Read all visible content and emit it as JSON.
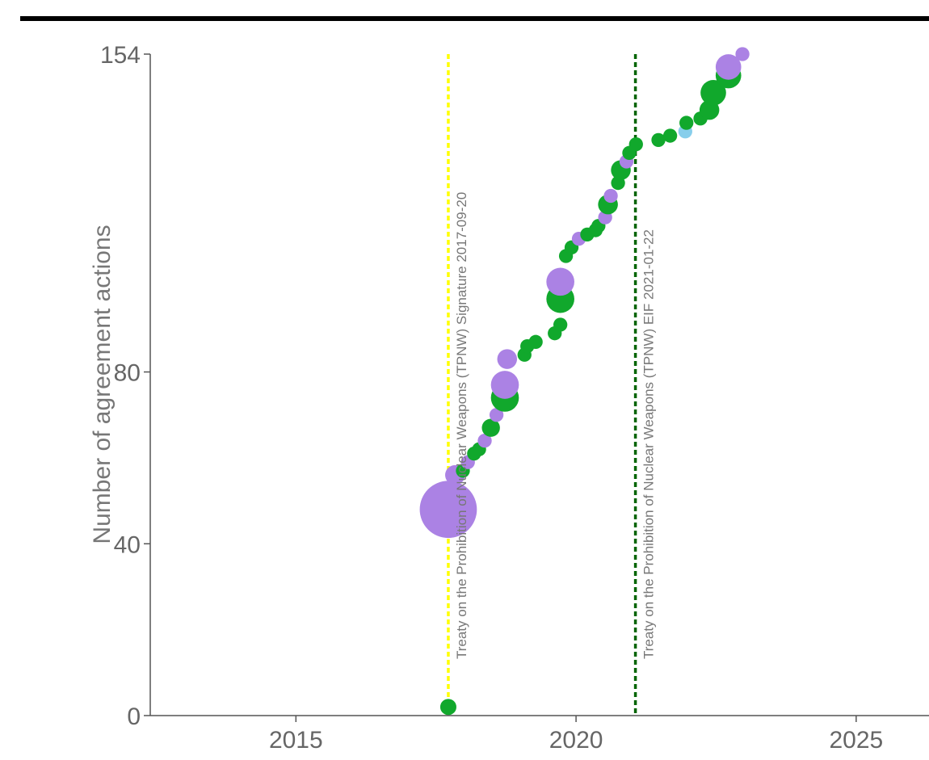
{
  "chart_data": {
    "type": "scatter",
    "title": "",
    "xlabel": "",
    "ylabel": "Number of agreement actions",
    "xlim": [
      2012.4,
      2026.3
    ],
    "ylim": [
      0,
      154
    ],
    "xticks": [
      {
        "value": 2015,
        "label": "2015"
      },
      {
        "value": 2020,
        "label": "2020"
      },
      {
        "value": 2025,
        "label": "2025"
      }
    ],
    "yticks": [
      {
        "value": 0,
        "label": "0"
      },
      {
        "value": 40,
        "label": "40"
      },
      {
        "value": 80,
        "label": "80"
      },
      {
        "value": 154,
        "label": "154"
      }
    ],
    "colors": {
      "green": "#11a82c",
      "purple": "#ab82e4",
      "lightblue": "#87ceeb",
      "yellow_line": "#ffff00",
      "darkgreen_line": "#006400",
      "axis": "#555555"
    },
    "events": [
      {
        "x": 2017.72,
        "label": "Treaty on the Prohibition of Nuclear Weapons (TPNW) Signature 2017-09-20",
        "color": "#ffff00"
      },
      {
        "x": 2021.06,
        "label": "Treaty on the Prohibition of Nuclear Weapons (TPNW) EIF 2021-01-22",
        "color": "#006400"
      }
    ],
    "points": [
      {
        "x": 2017.72,
        "y": 2,
        "size": 4,
        "color": "green"
      },
      {
        "x": 2017.72,
        "y": 48,
        "size": 50,
        "color": "purple"
      },
      {
        "x": 2017.84,
        "y": 56,
        "size": 6,
        "color": "purple"
      },
      {
        "x": 2017.98,
        "y": 57,
        "size": 3,
        "color": "green"
      },
      {
        "x": 2018.07,
        "y": 59,
        "size": 3,
        "color": "purple"
      },
      {
        "x": 2018.18,
        "y": 61,
        "size": 3,
        "color": "green"
      },
      {
        "x": 2018.27,
        "y": 62,
        "size": 3,
        "color": "green"
      },
      {
        "x": 2018.37,
        "y": 64,
        "size": 3,
        "color": "purple"
      },
      {
        "x": 2018.48,
        "y": 67,
        "size": 5,
        "color": "green"
      },
      {
        "x": 2018.58,
        "y": 70,
        "size": 3,
        "color": "purple"
      },
      {
        "x": 2018.73,
        "y": 74,
        "size": 12,
        "color": "green"
      },
      {
        "x": 2018.73,
        "y": 77,
        "size": 12,
        "color": "purple"
      },
      {
        "x": 2018.77,
        "y": 83,
        "size": 6,
        "color": "purple"
      },
      {
        "x": 2019.08,
        "y": 84,
        "size": 3,
        "color": "green"
      },
      {
        "x": 2019.13,
        "y": 86,
        "size": 3,
        "color": "green"
      },
      {
        "x": 2019.28,
        "y": 87,
        "size": 3,
        "color": "green"
      },
      {
        "x": 2019.62,
        "y": 89,
        "size": 3,
        "color": "green"
      },
      {
        "x": 2019.72,
        "y": 91,
        "size": 3,
        "color": "green"
      },
      {
        "x": 2019.72,
        "y": 97,
        "size": 12,
        "color": "green"
      },
      {
        "x": 2019.72,
        "y": 101,
        "size": 12,
        "color": "purple"
      },
      {
        "x": 2019.82,
        "y": 107,
        "size": 3,
        "color": "green"
      },
      {
        "x": 2019.92,
        "y": 109,
        "size": 3,
        "color": "green"
      },
      {
        "x": 2020.05,
        "y": 111,
        "size": 3,
        "color": "purple"
      },
      {
        "x": 2020.2,
        "y": 112,
        "size": 3,
        "color": "green"
      },
      {
        "x": 2020.35,
        "y": 113,
        "size": 3,
        "color": "green"
      },
      {
        "x": 2020.4,
        "y": 114,
        "size": 3,
        "color": "green"
      },
      {
        "x": 2020.52,
        "y": 116,
        "size": 3,
        "color": "purple"
      },
      {
        "x": 2020.57,
        "y": 119,
        "size": 6,
        "color": "green"
      },
      {
        "x": 2020.62,
        "y": 121,
        "size": 3,
        "color": "purple"
      },
      {
        "x": 2020.75,
        "y": 124,
        "size": 3,
        "color": "green"
      },
      {
        "x": 2020.8,
        "y": 127,
        "size": 6,
        "color": "green"
      },
      {
        "x": 2020.9,
        "y": 129,
        "size": 3,
        "color": "purple"
      },
      {
        "x": 2020.95,
        "y": 131,
        "size": 3,
        "color": "green"
      },
      {
        "x": 2021.07,
        "y": 133,
        "size": 3,
        "color": "green"
      },
      {
        "x": 2021.47,
        "y": 134,
        "size": 3,
        "color": "green"
      },
      {
        "x": 2021.68,
        "y": 135,
        "size": 3,
        "color": "green"
      },
      {
        "x": 2021.95,
        "y": 136,
        "size": 3,
        "color": "lightblue"
      },
      {
        "x": 2021.97,
        "y": 138,
        "size": 3,
        "color": "green"
      },
      {
        "x": 2022.22,
        "y": 139,
        "size": 3,
        "color": "green"
      },
      {
        "x": 2022.38,
        "y": 141,
        "size": 6,
        "color": "green"
      },
      {
        "x": 2022.45,
        "y": 145,
        "size": 10,
        "color": "green"
      },
      {
        "x": 2022.72,
        "y": 149,
        "size": 10,
        "color": "green"
      },
      {
        "x": 2022.72,
        "y": 151,
        "size": 10,
        "color": "purple"
      },
      {
        "x": 2022.97,
        "y": 154,
        "size": 3,
        "color": "purple"
      }
    ]
  }
}
